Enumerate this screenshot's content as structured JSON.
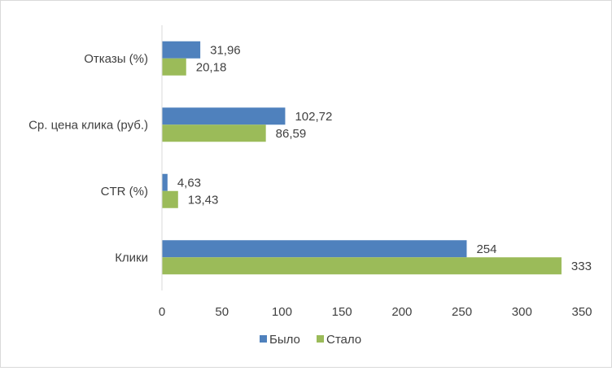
{
  "chart_data": {
    "type": "bar",
    "orientation": "horizontal",
    "title": "",
    "xlabel": "",
    "ylabel": "",
    "categories": [
      "Клики",
      "CTR (%)",
      "Ср. цена клика (руб.)",
      "Отказы (%)"
    ],
    "series": [
      {
        "name": "Было",
        "color": "#4f81bd",
        "values": [
          254,
          4.63,
          102.72,
          31.96
        ],
        "labels": [
          "254",
          "4,63",
          "102,72",
          "31,96"
        ]
      },
      {
        "name": "Стало",
        "color": "#9bbb59",
        "values": [
          333,
          13.43,
          86.59,
          20.18
        ],
        "labels": [
          "333",
          "13,43",
          "86,59",
          "20,18"
        ]
      }
    ],
    "xlim": [
      0,
      350
    ],
    "xticks": [
      "0",
      "50",
      "100",
      "150",
      "200",
      "250",
      "300",
      "350"
    ],
    "grid": false,
    "legend_position": "bottom"
  }
}
